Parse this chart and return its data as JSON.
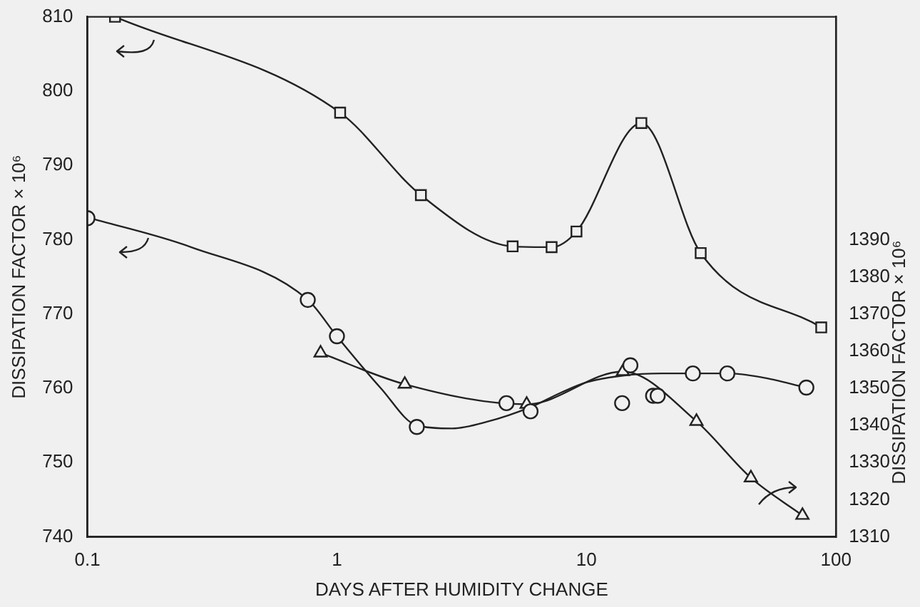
{
  "chart_data": {
    "type": "line",
    "xlabel": "DAYS AFTER HUMIDITY CHANGE",
    "ylabel": "DISSIPATION FACTOR × 10⁶",
    "y2label": "DISSIPATION FACTOR × 10⁶",
    "log": "x",
    "grid": false,
    "legend": false,
    "xlim": [
      0.1,
      100
    ],
    "xticks": [
      0.1,
      1,
      10,
      100
    ],
    "ylim": [
      740,
      810
    ],
    "yticks": [
      740,
      750,
      760,
      770,
      780,
      790,
      800,
      810
    ],
    "y2lim": [
      1310,
      1450
    ],
    "y2ticks": [
      1310,
      1320,
      1330,
      1340,
      1350,
      1360,
      1370,
      1380,
      1390
    ],
    "series": [
      {
        "color": "#222222",
        "marker": "square",
        "x": [
          0.129,
          1.03,
          2.17,
          5.06,
          7.25,
          9.12,
          16.6,
          28.7,
          87.3
        ],
        "values": [
          810,
          797.1,
          786,
          779.1,
          779,
          781.1,
          795.7,
          778.2,
          768.2
        ]
      },
      {
        "type": "scatter",
        "color": "#222222",
        "marker": "circle",
        "x": [
          0.1,
          0.764,
          1.0,
          2.09,
          4.78,
          5.97,
          13.9,
          15.0,
          18.5,
          19.3,
          26.7,
          36.7,
          76.1
        ],
        "values": [
          782.9,
          771.9,
          767,
          754.8,
          758,
          756.9,
          758,
          763.1,
          759,
          759,
          762,
          762,
          760.1
        ]
      },
      {
        "color": "#222222",
        "marker": "none",
        "x": [
          0.1,
          0.26,
          0.76,
          1,
          1.5,
          2.09,
          2.9,
          4,
          6,
          8,
          10,
          14,
          20,
          27,
          37,
          50,
          76
        ],
        "values": [
          783,
          779,
          772,
          767,
          760,
          755,
          754.6,
          755.5,
          757.5,
          759.5,
          760.8,
          761.7,
          762,
          762,
          762,
          761.5,
          760.1
        ]
      },
      {
        "color": "#222222",
        "marker": "triangle",
        "axis": "y2",
        "x": [
          0.86,
          1.87,
          5.76,
          14.0,
          27.6,
          45.6,
          73.4
        ],
        "values": [
          1359.5,
          1351.1,
          1345.7,
          1354.5,
          1341.1,
          1325.9,
          1315.8
        ]
      }
    ]
  }
}
